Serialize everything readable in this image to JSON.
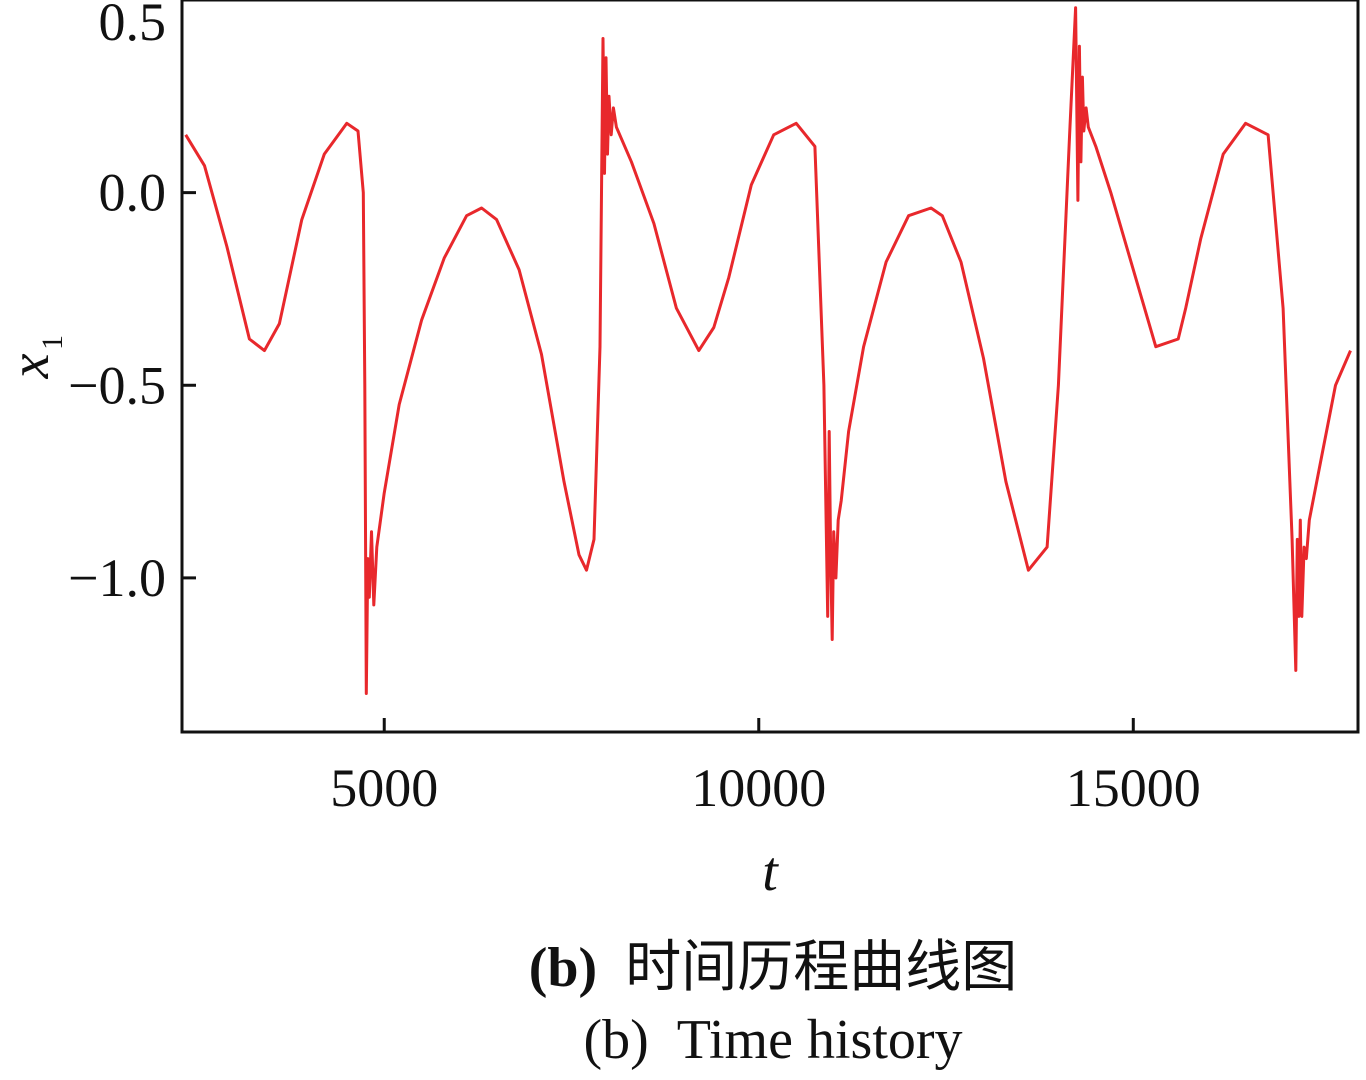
{
  "chart_data": {
    "type": "line",
    "xlabel": "t",
    "ylabel": {
      "base": "x",
      "subscript": "1"
    },
    "xlim": [
      2300,
      18000
    ],
    "ylim": [
      -1.4,
      0.5
    ],
    "xticks": [
      5000,
      10000,
      15000
    ],
    "xtick_labels": [
      "5000",
      "10000",
      "15000"
    ],
    "yticks": [
      0.5,
      0.0,
      -0.5,
      -1.0
    ],
    "ytick_labels": [
      "0.5",
      "0.0",
      "−0.5",
      "−1.0"
    ],
    "grid": false,
    "legend": "none",
    "line_color": "#e8282c",
    "series": [
      {
        "x": [
          2350,
          2600,
          2900,
          3200,
          3400,
          3600,
          3900,
          4200,
          4500,
          4650,
          4720,
          4740,
          4760,
          4780,
          4800,
          4830,
          4860,
          4900,
          5000,
          5200,
          5500,
          5800,
          6100,
          6300,
          6500,
          6800,
          7100,
          7400,
          7600,
          7700,
          7800,
          7880,
          7920,
          7940,
          7960,
          7980,
          8000,
          8030,
          8060,
          8100,
          8300,
          8600,
          8900,
          9200,
          9400,
          9600,
          9900,
          10200,
          10500,
          10750,
          10870,
          10920,
          10940,
          10960,
          10980,
          11000,
          11030,
          11060,
          11100,
          11200,
          11400,
          11700,
          12000,
          12300,
          12450,
          12700,
          13000,
          13300,
          13600,
          13850,
          14000,
          14150,
          14230,
          14260,
          14280,
          14300,
          14320,
          14340,
          14370,
          14400,
          14500,
          14700,
          15000,
          15300,
          15600,
          15700,
          15900,
          16200,
          16500,
          16800,
          17000,
          17120,
          17170,
          17190,
          17210,
          17230,
          17250,
          17280,
          17310,
          17350,
          17500,
          17700,
          17900
        ],
        "y": [
          0.15,
          0.07,
          -0.14,
          -0.38,
          -0.41,
          -0.34,
          -0.07,
          0.1,
          0.18,
          0.16,
          0.0,
          -0.5,
          -1.3,
          -0.95,
          -1.05,
          -0.88,
          -1.07,
          -0.92,
          -0.78,
          -0.55,
          -0.33,
          -0.17,
          -0.06,
          -0.04,
          -0.07,
          -0.2,
          -0.42,
          -0.75,
          -0.94,
          -0.98,
          -0.9,
          -0.4,
          0.4,
          0.05,
          0.35,
          0.1,
          0.25,
          0.15,
          0.22,
          0.17,
          0.08,
          -0.08,
          -0.3,
          -0.41,
          -0.35,
          -0.22,
          0.02,
          0.15,
          0.18,
          0.12,
          -0.5,
          -1.1,
          -0.62,
          -0.95,
          -1.16,
          -0.88,
          -1.0,
          -0.85,
          -0.8,
          -0.62,
          -0.4,
          -0.18,
          -0.06,
          -0.04,
          -0.06,
          -0.18,
          -0.43,
          -0.75,
          -0.98,
          -0.92,
          -0.5,
          0.15,
          0.48,
          -0.02,
          0.38,
          0.08,
          0.3,
          0.16,
          0.22,
          0.17,
          0.12,
          0.0,
          -0.2,
          -0.4,
          -0.38,
          -0.3,
          -0.12,
          0.1,
          0.18,
          0.15,
          -0.3,
          -0.9,
          -1.24,
          -0.9,
          -1.1,
          -0.85,
          -1.1,
          -0.92,
          -0.95,
          -0.85,
          -0.7,
          -0.5,
          -0.41
        ]
      }
    ]
  },
  "captions": {
    "cn_letter": "(b)",
    "cn_text": "时间历程曲线图",
    "en_letter": "(b)",
    "en_text": "Time history"
  }
}
